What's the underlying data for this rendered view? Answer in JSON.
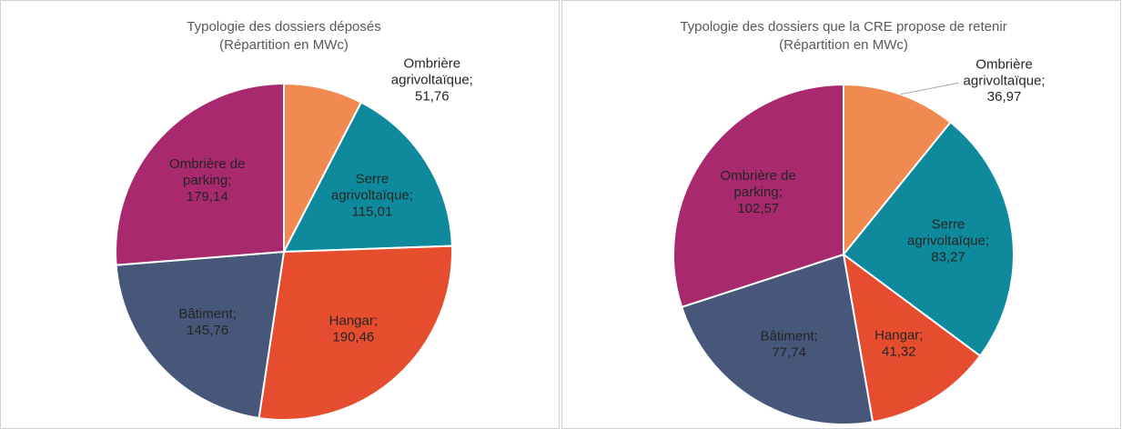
{
  "chart_data": [
    {
      "type": "pie",
      "title": "Typologie des dossiers déposés",
      "subtitle": "(Répartition en MWc)",
      "label_separator": ";",
      "categories": [
        "Ombrière agrivoltaïque",
        "Serre agrivoltaïque",
        "Hangar",
        "Bâtiment",
        "Ombrière de parking"
      ],
      "values": [
        51.76,
        115.01,
        190.46,
        145.76,
        179.14
      ],
      "value_labels": [
        "51,76",
        "115,01",
        "190,46",
        "145,76",
        "179,14"
      ],
      "colors": [
        "#f08a50",
        "#0f8a9d",
        "#e64d2e",
        "#46577a",
        "#a8296e"
      ]
    },
    {
      "type": "pie",
      "title": "Typologie des dossiers que la CRE propose de retenir",
      "subtitle": "(Répartition en MWc)",
      "label_separator": ";",
      "categories": [
        "Ombrière agrivoltaïque",
        "Serre agrivoltaïque",
        "Hangar",
        "Bâtiment",
        "Ombrière de parking"
      ],
      "values": [
        36.97,
        83.27,
        41.32,
        77.74,
        102.57
      ],
      "value_labels": [
        "36,97",
        "83,27",
        "41,32",
        "77,74",
        "102,57"
      ],
      "colors": [
        "#f08a50",
        "#0f8a9d",
        "#e64d2e",
        "#46577a",
        "#a8296e"
      ]
    }
  ]
}
